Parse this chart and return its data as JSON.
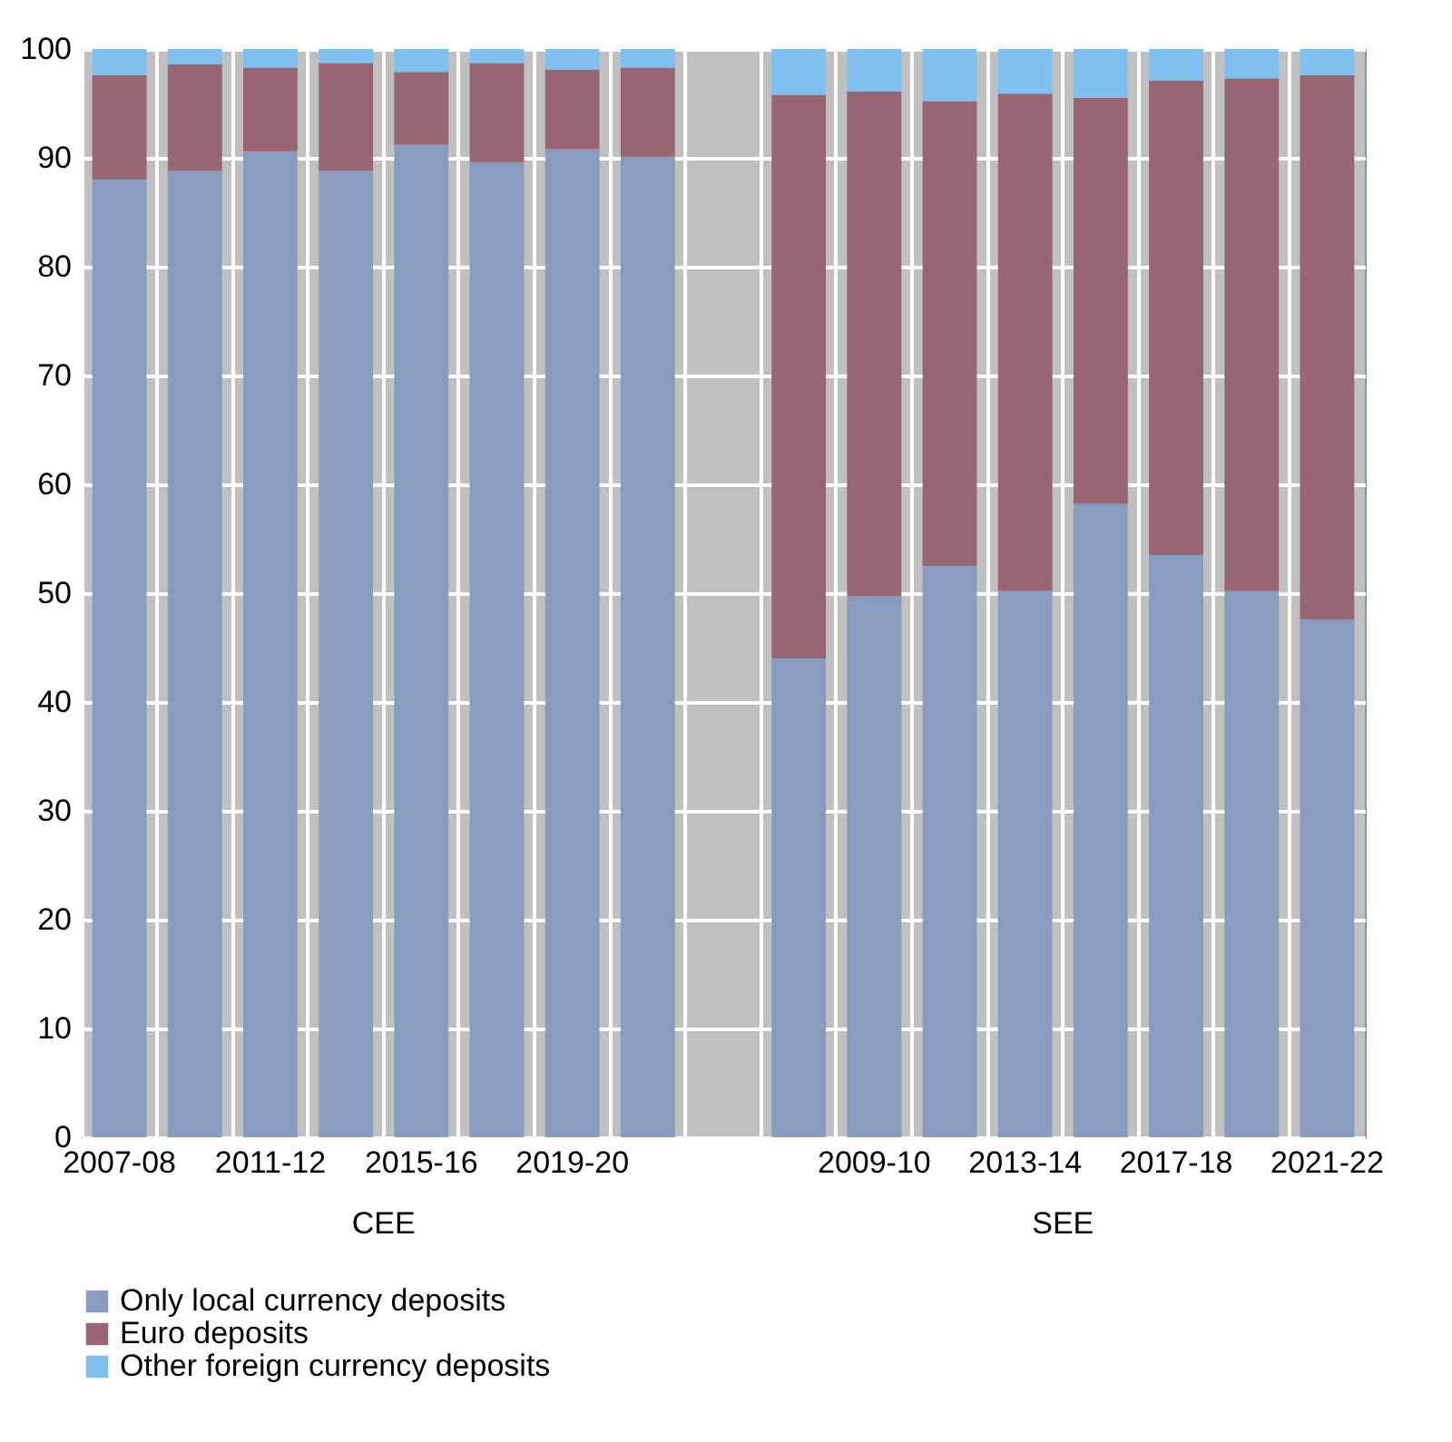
{
  "chart_data": {
    "type": "bar",
    "stacked": true,
    "categories": [
      "2007-08",
      null,
      "2011-12",
      null,
      "2015-16",
      null,
      "2019-20",
      null,
      null,
      null,
      "2009-10",
      null,
      "2013-14",
      null,
      "2017-18",
      null,
      "2021-22"
    ],
    "series": [
      {
        "name": "Only local currency deposits",
        "color": "#889cc0",
        "values": [
          88,
          88.8,
          90.6,
          88.8,
          91.2,
          89.6,
          90.8,
          90.1,
          null,
          44,
          49.7,
          52.5,
          50.2,
          58.2,
          53.5,
          50.2,
          47.6
        ]
      },
      {
        "name": "Euro deposits",
        "color": "#986673",
        "values": [
          9.6,
          9.8,
          7.7,
          9.9,
          6.7,
          9.1,
          7.3,
          8.2,
          null,
          51.8,
          46.4,
          42.7,
          45.7,
          37.3,
          43.6,
          47.1,
          50.0
        ]
      },
      {
        "name": "Other foreign currency deposits",
        "color": "#80c0ee",
        "values": [
          2.4,
          1.4,
          1.7,
          1.3,
          2.1,
          1.3,
          1.9,
          1.7,
          null,
          4.2,
          3.9,
          4.8,
          4.1,
          4.5,
          2.9,
          2.7,
          2.4
        ]
      }
    ],
    "ylim": [
      0,
      100
    ],
    "yticks": [
      0,
      10,
      20,
      30,
      40,
      50,
      60,
      70,
      80,
      90,
      100
    ],
    "grid": true,
    "legend": "bottom",
    "annotations": [
      "CEE",
      "SEE"
    ]
  }
}
